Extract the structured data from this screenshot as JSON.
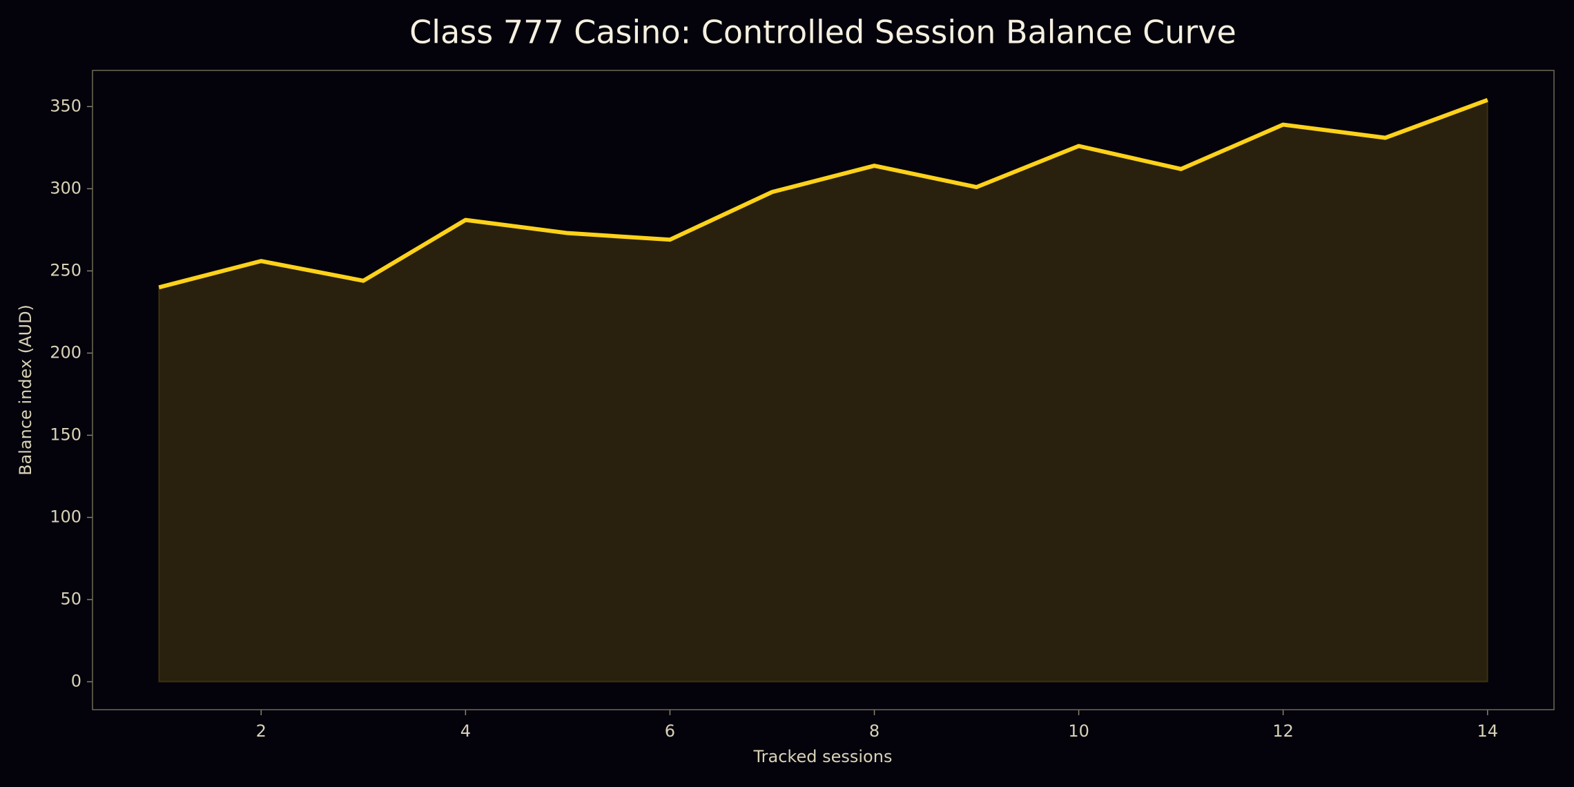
{
  "chart_data": {
    "type": "area",
    "title": "Class 777 Casino: Controlled Session Balance Curve",
    "x_label": "Tracked sessions",
    "y_label": "Balance index (AUD)",
    "x": [
      1,
      2,
      3,
      4,
      5,
      6,
      7,
      8,
      9,
      10,
      11,
      12,
      13,
      14
    ],
    "series": [
      {
        "color": "#ffd21a",
        "values": [
          240,
          256,
          244,
          281,
          273,
          269,
          298,
          314,
          301,
          326,
          312,
          339,
          331,
          354
        ]
      }
    ],
    "xlim": [
      0.35,
      14.65
    ],
    "ylim": [
      -17,
      372
    ],
    "xticks": [
      2,
      4,
      6,
      8,
      10,
      12,
      14
    ],
    "yticks": [
      0,
      50,
      100,
      150,
      200,
      250,
      300,
      350
    ]
  }
}
